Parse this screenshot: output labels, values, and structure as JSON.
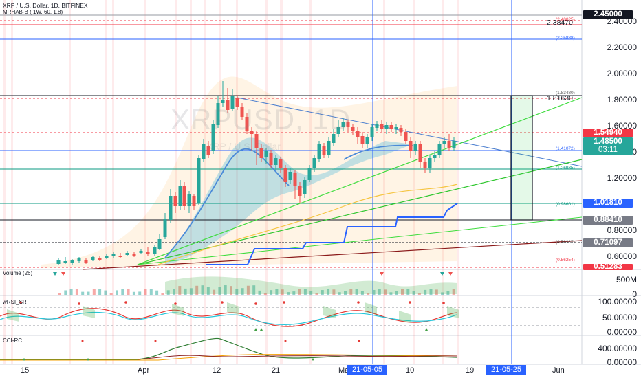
{
  "header": {
    "symbol_line": "XRP / U.S. Dollar, 1D, BITFINEX",
    "indicator_line": "MRHAB-B ( 1W, 60, 1.8)",
    "watermark": "XRPUSD, 1D",
    "watermark_sub": "XRP / U.S. Dollar"
  },
  "price_axis": {
    "ticks": [
      "2.40000",
      "2.20000",
      "2.00000",
      "1.80000",
      "1.60000",
      "1.40000",
      "1.20000",
      "0.80000",
      "0.60000"
    ],
    "badges": [
      {
        "text": "2.45000",
        "color": "#131722"
      },
      {
        "text": "1.54940",
        "color": "#f23645"
      },
      {
        "text": "1.48500",
        "color": "#26a69a"
      },
      {
        "text": "03:11",
        "color": "#26a69a"
      },
      {
        "text": "1.01810",
        "color": "#2962ff"
      },
      {
        "text": "0.88410",
        "color": "#787b86"
      },
      {
        "text": "0.71097",
        "color": "#787b86"
      },
      {
        "text": "0.51283",
        "color": "#f23645"
      }
    ],
    "level_labels": [
      {
        "text": "2.38470"
      },
      {
        "text": "1.81630"
      }
    ],
    "fib_labels": [
      "(2.40025)",
      "(2.25888)",
      "(1.83480)",
      "(1.41072)",
      "(1.26935)",
      "(0.98661)",
      "(0.70387)",
      "(0.56254)"
    ]
  },
  "panes": {
    "volume": {
      "title": "Volume (26)",
      "axis": [
        "500M",
        "0"
      ]
    },
    "wrsi": {
      "title": "wRSI_SR",
      "axis": [
        "100.00000",
        "50.00000",
        "0.00000"
      ]
    },
    "cci": {
      "title": "CCI-RC",
      "axis": [
        "400.00000",
        "0.00000"
      ]
    }
  },
  "time_axis": {
    "labels": [
      "15",
      "Apr",
      "12",
      "21",
      "Ma",
      "10",
      "19",
      "Jun"
    ],
    "highlights": [
      "21-05-05",
      "21-05-25"
    ]
  }
}
